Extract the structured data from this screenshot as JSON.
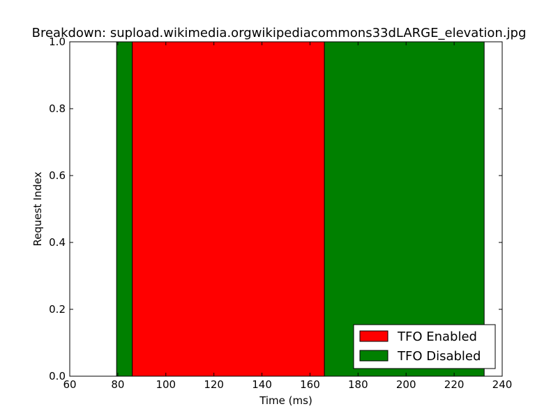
{
  "chart_data": {
    "type": "bar",
    "orientation": "horizontal-span",
    "title": "Breakdown: supload.wikimedia.orgwikipediacommons33dLARGE_elevation.jpg",
    "xlabel": "Time (ms)",
    "ylabel": "Request Index",
    "xlim": [
      60,
      240
    ],
    "ylim": [
      0.0,
      1.0
    ],
    "xticks": [
      "60",
      "80",
      "100",
      "120",
      "140",
      "160",
      "180",
      "200",
      "220",
      "240"
    ],
    "yticks": [
      "0.0",
      "0.2",
      "0.4",
      "0.6",
      "0.8",
      "1.0"
    ],
    "grid": false,
    "legend_position": "lower-right",
    "series": [
      {
        "name": "TFO Enabled",
        "color": "#ff0000",
        "spans": [
          [
            86,
            166
          ]
        ]
      },
      {
        "name": "TFO Disabled",
        "color": "#008000",
        "spans": [
          [
            79.5,
            86
          ],
          [
            166,
            232.5
          ]
        ]
      }
    ]
  }
}
